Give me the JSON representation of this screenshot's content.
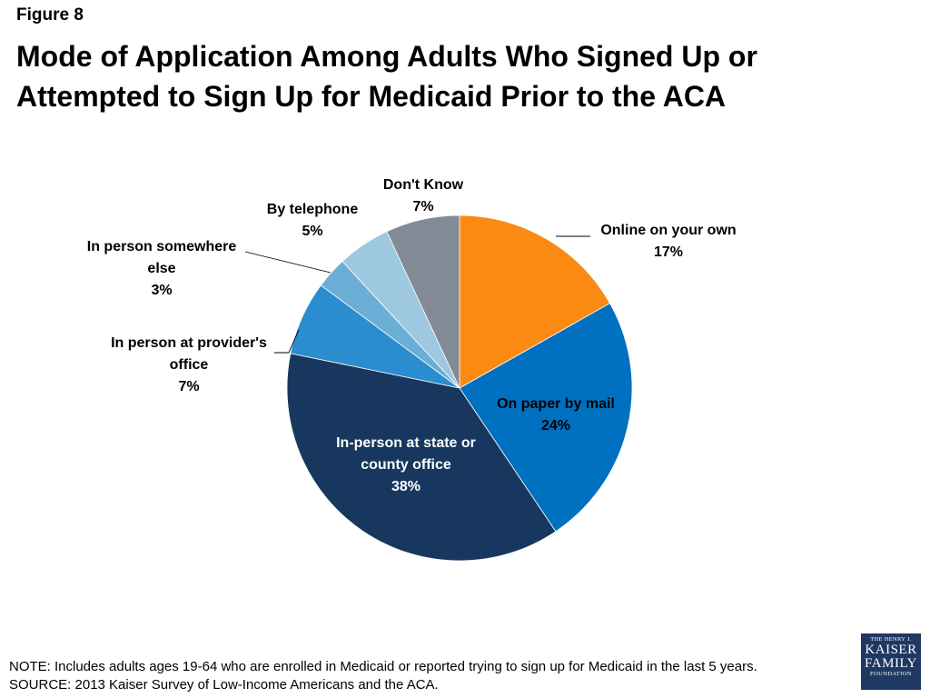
{
  "figure_label": "Figure 8",
  "title": "Mode of Application Among Adults Who Signed Up or Attempted to Sign Up for Medicaid Prior to the ACA",
  "chart_data": {
    "type": "pie",
    "title": "Mode of Application Among Adults Who Signed Up or Attempted to Sign Up for Medicaid Prior to the ACA",
    "unit": "%",
    "slices": [
      {
        "label": "Online on your own",
        "label_lines": [
          "Online on your own"
        ],
        "value": 17,
        "value_text": "17%",
        "color": "#fb8a13"
      },
      {
        "label": "On paper by mail",
        "label_lines": [
          "On paper by mail"
        ],
        "value": 24,
        "value_text": "24%",
        "color": "#0070c0"
      },
      {
        "label": "In-person at state or county office",
        "label_lines": [
          "In-person at state or",
          "county office"
        ],
        "value": 38,
        "value_text": "38%",
        "color": "#17375e"
      },
      {
        "label": "In person at provider's office",
        "label_lines": [
          "In person at provider's",
          "office"
        ],
        "value": 7,
        "value_text": "7%",
        "color": "#2b8ccf"
      },
      {
        "label": "In person somewhere else",
        "label_lines": [
          "In person somewhere",
          "else"
        ],
        "value": 3,
        "value_text": "3%",
        "color": "#6bafd6"
      },
      {
        "label": "By telephone",
        "label_lines": [
          "By telephone"
        ],
        "value": 5,
        "value_text": "5%",
        "color": "#9ec7e0"
      },
      {
        "label": "Don't Know",
        "label_lines": [
          "Don't Know"
        ],
        "value": 7,
        "value_text": "7%",
        "color": "#828a96"
      }
    ]
  },
  "footer": {
    "note": "NOTE: Includes adults ages 19-64 who are enrolled in Medicaid or reported trying to sign up for Medicaid in the last 5 years.",
    "source": "SOURCE: 2013 Kaiser Survey of Low-Income Americans and the ACA."
  },
  "logo": {
    "line1": "THE HENRY J.",
    "line2": "KAISER",
    "line3": "FAMILY",
    "line4": "FOUNDATION"
  }
}
